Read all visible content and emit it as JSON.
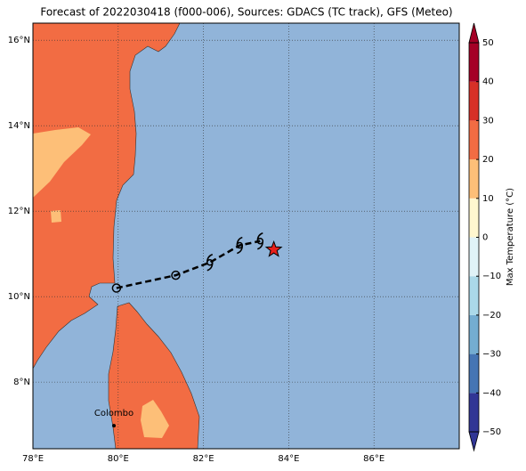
{
  "title": "Forecast of 2022030418 (f000-006), Sources: GDACS (TC track), GFS (Meteo)",
  "map": {
    "lonlim": [
      78,
      88
    ],
    "latlim": [
      6.44,
      16.4
    ],
    "grid": true,
    "lonticks": [
      {
        "value": 78,
        "label": "78°E"
      },
      {
        "value": 80,
        "label": "80°E"
      },
      {
        "value": 82,
        "label": "82°E"
      },
      {
        "value": 84,
        "label": "84°E"
      },
      {
        "value": 86,
        "label": "86°E"
      }
    ],
    "latticks": [
      {
        "value": 8,
        "label": "8°N"
      },
      {
        "value": 10,
        "label": "10°N"
      },
      {
        "value": 12,
        "label": "12°N"
      },
      {
        "value": 14,
        "label": "14°N"
      },
      {
        "value": 16,
        "label": "16°N"
      }
    ],
    "track": {
      "lon": [
        79.96,
        81.35,
        82.15,
        82.85,
        83.33
      ],
      "lat": [
        10.2,
        10.5,
        10.8,
        11.2,
        11.3
      ],
      "markers": [
        "circle",
        "circle",
        "cyclone",
        "cyclone",
        "cyclone"
      ],
      "color": "#000000"
    },
    "storm": {
      "lon": 83.65,
      "lat": 11.1,
      "color": "#e8201c"
    },
    "cities": [
      {
        "name": "Colombo",
        "lon": 79.9,
        "lat": 6.98
      }
    ]
  },
  "colorbar": {
    "label": "Max Temperature (°C)",
    "lim": [
      -50,
      50
    ],
    "ticks": [
      {
        "value": -50,
        "label": "−50"
      },
      {
        "value": -40,
        "label": "−40"
      },
      {
        "value": -30,
        "label": "−30"
      },
      {
        "value": -20,
        "label": "−20"
      },
      {
        "value": -10,
        "label": "−10"
      },
      0,
      10,
      20,
      30,
      40,
      50
    ],
    "colors": [
      "#313695",
      "#4575b4",
      "#74add1",
      "#abd9e9",
      "#e0f3f8",
      "#fff7cf",
      "#fdbf78",
      "#f26c43",
      "#d73027",
      "#a50026"
    ]
  }
}
